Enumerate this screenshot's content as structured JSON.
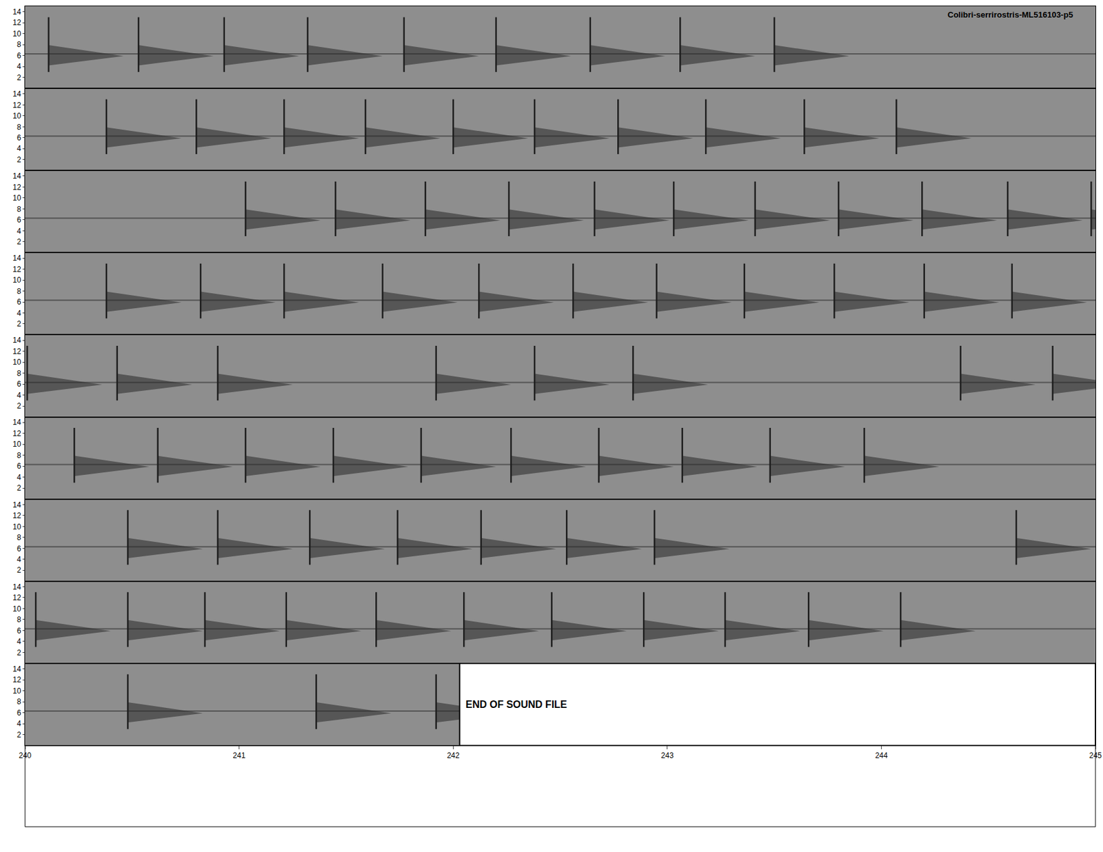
{
  "chart_data": {
    "type": "spectrogram",
    "title": "Colibri-serrirostris-ML516103-p5",
    "end_label": "END OF SOUND FILE",
    "end_of_file": 242.03,
    "ylim": [
      0,
      15
    ],
    "yticks": [
      2,
      4,
      6,
      8,
      10,
      12,
      14
    ],
    "call_band": [
      3,
      13
    ],
    "noise_band": 6.3,
    "color": "#1e1e1e",
    "rows": [
      {
        "xlim": [
          200,
          205
        ],
        "tick_labels": "y",
        "calls": [
          200.11,
          200.53,
          200.93,
          201.32,
          201.77,
          202.2,
          202.64,
          203.06,
          203.5
        ]
      },
      {
        "xlim": [
          205,
          210
        ],
        "tick_labels": "y",
        "calls": [
          205.38,
          205.8,
          206.21,
          206.59,
          207.0,
          207.38,
          207.77,
          208.18,
          208.64,
          209.07
        ]
      },
      {
        "xlim": [
          210,
          215
        ],
        "tick_labels": "y",
        "calls": [
          211.03,
          211.45,
          211.87,
          212.26,
          212.66,
          213.03,
          213.41,
          213.8,
          214.19,
          214.59,
          214.98
        ]
      },
      {
        "xlim": [
          215,
          220
        ],
        "tick_labels": "y",
        "calls": [
          215.38,
          215.82,
          216.21,
          216.67,
          217.12,
          217.56,
          217.95,
          218.36,
          218.78,
          219.2,
          219.61
        ]
      },
      {
        "xlim": [
          220,
          225
        ],
        "tick_labels": "y",
        "calls": [
          220.01,
          220.43,
          220.9,
          221.92,
          222.38,
          222.84,
          224.37,
          224.8
        ]
      },
      {
        "xlim": [
          225,
          230
        ],
        "tick_labels": "y",
        "calls": [
          225.23,
          225.62,
          226.03,
          226.44,
          226.85,
          227.27,
          227.68,
          228.07,
          228.48,
          228.92
        ]
      },
      {
        "xlim": [
          230,
          235
        ],
        "tick_labels": "y",
        "calls": [
          230.48,
          230.9,
          231.33,
          231.74,
          232.13,
          232.53,
          232.94,
          234.63
        ]
      },
      {
        "xlim": [
          235,
          240
        ],
        "tick_labels": "y",
        "calls": [
          235.05,
          235.48,
          235.84,
          236.22,
          236.64,
          237.05,
          237.46,
          237.89,
          238.27,
          238.66,
          239.09
        ]
      },
      {
        "xlim": [
          240,
          245
        ],
        "tick_labels": true,
        "xticks": [
          240,
          241,
          242,
          243,
          244,
          245
        ],
        "calls": [
          240.48,
          241.36,
          241.92
        ]
      }
    ]
  }
}
